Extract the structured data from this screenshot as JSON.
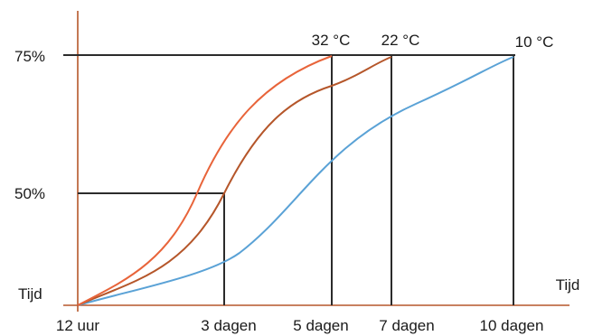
{
  "chart_data": {
    "type": "line",
    "title": "",
    "xlabel": "Tijd",
    "ylabel": "Tijd",
    "x_ticks": [
      "12 uur",
      "3 dagen",
      "5 dagen",
      "7 dagen",
      "10 dagen"
    ],
    "y_ticks": [
      "50%",
      "75%"
    ],
    "series": [
      {
        "name": "32 °C",
        "color": "#e8643a",
        "points": [
          [
            0,
            0
          ],
          [
            0.5,
            3
          ],
          [
            1,
            8
          ],
          [
            1.5,
            20
          ],
          [
            2,
            36
          ],
          [
            2.5,
            50
          ],
          [
            3,
            58
          ],
          [
            3.5,
            64
          ],
          [
            4,
            69
          ],
          [
            4.5,
            73
          ],
          [
            5,
            75
          ]
        ]
      },
      {
        "name": "22 °C",
        "color": "#b5562a",
        "points": [
          [
            0,
            0
          ],
          [
            0.5,
            2
          ],
          [
            1,
            5
          ],
          [
            1.5,
            12
          ],
          [
            2,
            22
          ],
          [
            2.5,
            32
          ],
          [
            3,
            41
          ],
          [
            4,
            55
          ],
          [
            5,
            65
          ],
          [
            6,
            71
          ],
          [
            7,
            75
          ]
        ]
      },
      {
        "name": "10 °C",
        "color": "#5aa2d6",
        "points": [
          [
            0,
            0
          ],
          [
            1,
            2
          ],
          [
            2,
            5
          ],
          [
            3,
            10
          ],
          [
            4,
            17
          ],
          [
            5,
            28
          ],
          [
            6,
            41
          ],
          [
            7,
            52
          ],
          [
            8,
            61
          ],
          [
            9,
            69
          ],
          [
            10,
            75
          ]
        ]
      }
    ],
    "reference_lines": [
      {
        "series": "32 °C",
        "x": 5,
        "y": 75
      },
      {
        "series": "22 °C",
        "x": 7,
        "y": 75
      },
      {
        "series": "10 °C",
        "x": 10,
        "y": 75
      },
      {
        "series": "22 °C",
        "x": 3,
        "y": 50
      }
    ],
    "grid": false,
    "legend": "none"
  },
  "colors": {
    "axis": "#b5562a",
    "guide": "#2b2b2b"
  }
}
